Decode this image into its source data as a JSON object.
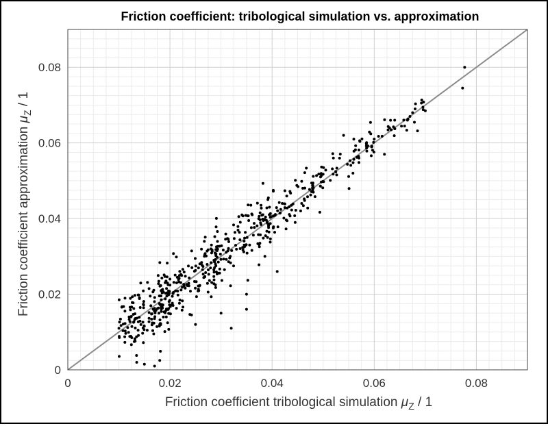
{
  "chart_data": {
    "type": "scatter",
    "title": "Friction coefficient: tribological simulation vs. approximation",
    "xlabel": {
      "prefix": "Friction coefficient tribological simulation ",
      "symbol": "μ",
      "sub": "Z",
      "suffix": " / 1"
    },
    "ylabel": {
      "prefix": "Friction coefficient approximation ",
      "symbol": "μ",
      "sub": "Z",
      "suffix": " / 1"
    },
    "xlim": [
      0,
      0.09
    ],
    "ylim": [
      0,
      0.09
    ],
    "xticks": [
      0,
      0.02,
      0.04,
      0.06,
      0.08
    ],
    "yticks": [
      0,
      0.02,
      0.04,
      0.06,
      0.08
    ],
    "xtick_labels": [
      "0",
      "0.02",
      "0.04",
      "0.06",
      "0.08"
    ],
    "ytick_labels": [
      "0",
      "0.02",
      "0.04",
      "0.06",
      "0.08"
    ],
    "grid": true,
    "minor_grid": true,
    "reference_line": {
      "from": [
        0,
        0
      ],
      "to": [
        0.09,
        0.09
      ]
    },
    "colors": {
      "points": "#000000",
      "reference_line": "#8a8a8a",
      "major_grid": "#cfcfcf",
      "minor_grid": "#ececec"
    },
    "clusters": [
      {
        "x_range": [
          0.01,
          0.02
        ],
        "scatter": 0.004,
        "count": 150
      },
      {
        "x_range": [
          0.018,
          0.03
        ],
        "scatter": 0.0038,
        "count": 140
      },
      {
        "x_range": [
          0.028,
          0.04
        ],
        "scatter": 0.004,
        "count": 120
      },
      {
        "x_range": [
          0.038,
          0.05
        ],
        "scatter": 0.003,
        "count": 80
      },
      {
        "x_range": [
          0.048,
          0.06
        ],
        "scatter": 0.0025,
        "count": 50
      },
      {
        "x_range": [
          0.058,
          0.07
        ],
        "scatter": 0.002,
        "count": 30
      }
    ],
    "points": [
      [
        0.0777,
        0.08
      ],
      [
        0.0773,
        0.0745
      ],
      [
        0.07,
        0.0685
      ],
      [
        0.068,
        0.069
      ],
      [
        0.0675,
        0.068
      ],
      [
        0.067,
        0.067
      ],
      [
        0.0665,
        0.066
      ],
      [
        0.064,
        0.066
      ],
      [
        0.062,
        0.057
      ],
      [
        0.0135,
        0.002
      ],
      [
        0.015,
        0.0015
      ],
      [
        0.018,
        0.0025
      ],
      [
        0.017,
        0.001
      ],
      [
        0.01,
        0.011
      ],
      [
        0.012,
        0.014
      ],
      [
        0.02,
        0.024
      ],
      [
        0.032,
        0.011
      ],
      [
        0.035,
        0.016
      ],
      [
        0.041,
        0.026
      ],
      [
        0.035,
        0.02
      ],
      [
        0.03,
        0.015
      ],
      [
        0.025,
        0.012
      ],
      [
        0.042,
        0.044
      ],
      [
        0.046,
        0.048
      ],
      [
        0.052,
        0.056
      ],
      [
        0.054,
        0.062
      ],
      [
        0.056,
        0.061
      ],
      [
        0.057,
        0.056
      ],
      [
        0.06,
        0.061
      ],
      [
        0.063,
        0.064
      ]
    ]
  }
}
